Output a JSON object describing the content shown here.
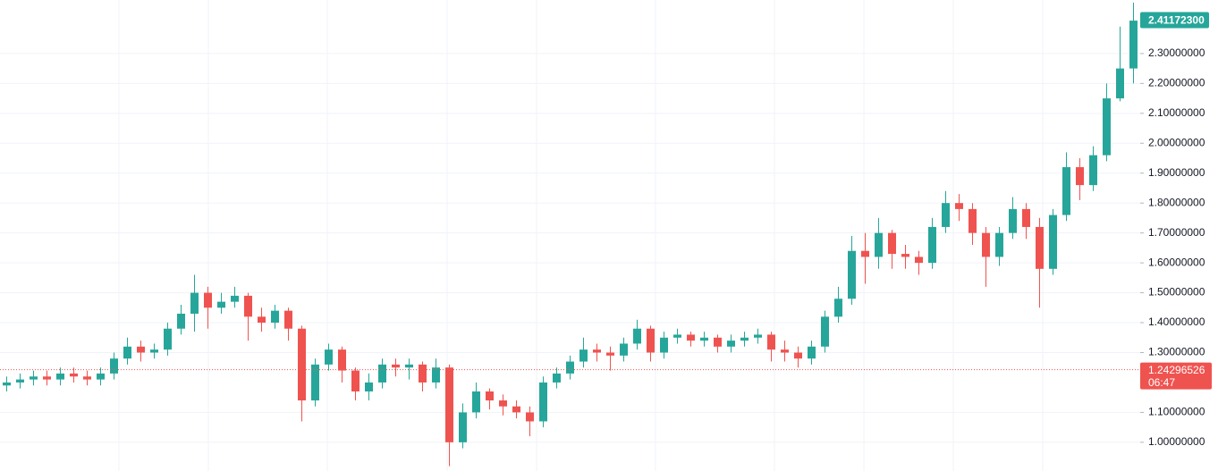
{
  "chart_data": {
    "type": "candlestick",
    "ylim": [
      0.904,
      2.479
    ],
    "yticks": [
      {
        "value": 1.0,
        "label": "1.00000000"
      },
      {
        "value": 1.1,
        "label": "1.10000000"
      },
      {
        "value": 1.3,
        "label": "1.30000000"
      },
      {
        "value": 1.4,
        "label": "1.40000000"
      },
      {
        "value": 1.5,
        "label": "1.50000000"
      },
      {
        "value": 1.6,
        "label": "1.60000000"
      },
      {
        "value": 1.7,
        "label": "1.70000000"
      },
      {
        "value": 1.8,
        "label": "1.80000000"
      },
      {
        "value": 1.9,
        "label": "1.90000000"
      },
      {
        "value": 2.0,
        "label": "2.00000000"
      },
      {
        "value": 2.1,
        "label": "2.10000000"
      },
      {
        "value": 2.2,
        "label": "2.20000000"
      },
      {
        "value": 2.3,
        "label": "2.30000000"
      }
    ],
    "grid": true,
    "up_color": "#26a69a",
    "down_color": "#ef5350",
    "series": [
      {
        "open": [
          1.19,
          1.2,
          1.21,
          1.22,
          1.21,
          1.23,
          1.22,
          1.21,
          1.23,
          1.28,
          1.32,
          1.3,
          1.31,
          1.38,
          1.43,
          1.5,
          1.45,
          1.47,
          1.49,
          1.42,
          1.4,
          1.44,
          1.38,
          1.14,
          1.26,
          1.31,
          1.24,
          1.17,
          1.2,
          1.26,
          1.25,
          1.26,
          1.2,
          1.25,
          1.0,
          1.1,
          1.17,
          1.14,
          1.12,
          1.1,
          1.07,
          1.2,
          1.23,
          1.27,
          1.31,
          1.3,
          1.29,
          1.33,
          1.38,
          1.3,
          1.35,
          1.36,
          1.34,
          1.35,
          1.32,
          1.34,
          1.35,
          1.36,
          1.31,
          1.3,
          1.28,
          1.32,
          1.42,
          1.48,
          1.64,
          1.62,
          1.7,
          1.63,
          1.62,
          1.6,
          1.72,
          1.8,
          1.78,
          1.7,
          1.62,
          1.7,
          1.78,
          1.72,
          1.58,
          1.76,
          1.92,
          1.86,
          1.96,
          2.15,
          2.25
        ],
        "high": [
          1.22,
          1.23,
          1.24,
          1.24,
          1.25,
          1.25,
          1.24,
          1.25,
          1.3,
          1.35,
          1.34,
          1.33,
          1.4,
          1.46,
          1.56,
          1.52,
          1.5,
          1.52,
          1.5,
          1.45,
          1.46,
          1.45,
          1.39,
          1.28,
          1.33,
          1.32,
          1.25,
          1.23,
          1.28,
          1.28,
          1.28,
          1.27,
          1.28,
          1.26,
          1.13,
          1.2,
          1.18,
          1.16,
          1.14,
          1.12,
          1.22,
          1.25,
          1.29,
          1.35,
          1.33,
          1.32,
          1.35,
          1.41,
          1.39,
          1.37,
          1.38,
          1.37,
          1.37,
          1.36,
          1.36,
          1.37,
          1.38,
          1.37,
          1.34,
          1.32,
          1.34,
          1.44,
          1.52,
          1.69,
          1.7,
          1.75,
          1.71,
          1.66,
          1.64,
          1.75,
          1.84,
          1.83,
          1.8,
          1.72,
          1.72,
          1.82,
          1.8,
          1.75,
          1.78,
          1.97,
          1.95,
          1.99,
          2.2,
          2.39,
          2.47
        ],
        "low": [
          1.17,
          1.18,
          1.19,
          1.19,
          1.19,
          1.2,
          1.19,
          1.19,
          1.21,
          1.26,
          1.27,
          1.28,
          1.29,
          1.36,
          1.37,
          1.38,
          1.43,
          1.45,
          1.34,
          1.37,
          1.38,
          1.34,
          1.07,
          1.12,
          1.24,
          1.2,
          1.14,
          1.14,
          1.18,
          1.22,
          1.21,
          1.17,
          1.18,
          0.92,
          0.98,
          1.08,
          1.11,
          1.09,
          1.08,
          1.02,
          1.05,
          1.18,
          1.21,
          1.25,
          1.27,
          1.24,
          1.27,
          1.31,
          1.27,
          1.28,
          1.33,
          1.32,
          1.32,
          1.3,
          1.3,
          1.32,
          1.33,
          1.27,
          1.27,
          1.25,
          1.26,
          1.3,
          1.4,
          1.46,
          1.53,
          1.58,
          1.58,
          1.58,
          1.56,
          1.58,
          1.7,
          1.74,
          1.66,
          1.52,
          1.59,
          1.68,
          1.68,
          1.45,
          1.56,
          1.74,
          1.81,
          1.84,
          1.94,
          2.14,
          2.2
        ],
        "close": [
          1.2,
          1.21,
          1.22,
          1.21,
          1.23,
          1.22,
          1.21,
          1.23,
          1.28,
          1.32,
          1.3,
          1.31,
          1.38,
          1.43,
          1.5,
          1.45,
          1.47,
          1.49,
          1.42,
          1.4,
          1.44,
          1.38,
          1.14,
          1.26,
          1.31,
          1.24,
          1.17,
          1.2,
          1.26,
          1.25,
          1.26,
          1.2,
          1.25,
          1.0,
          1.1,
          1.17,
          1.14,
          1.12,
          1.1,
          1.07,
          1.2,
          1.23,
          1.27,
          1.31,
          1.3,
          1.29,
          1.33,
          1.38,
          1.3,
          1.35,
          1.36,
          1.34,
          1.35,
          1.32,
          1.34,
          1.35,
          1.36,
          1.31,
          1.3,
          1.28,
          1.32,
          1.42,
          1.48,
          1.64,
          1.62,
          1.7,
          1.63,
          1.62,
          1.6,
          1.72,
          1.8,
          1.78,
          1.7,
          1.62,
          1.7,
          1.78,
          1.72,
          1.58,
          1.76,
          1.92,
          1.86,
          1.96,
          2.15,
          2.25,
          2.41
        ]
      }
    ],
    "last_price": {
      "value": 2.411723,
      "label": "2.41172300",
      "color": "#26a69a"
    },
    "price_line": {
      "value": 1.24296526,
      "label": "1.24296526",
      "countdown": "06:47",
      "color": "#ef5350"
    }
  }
}
